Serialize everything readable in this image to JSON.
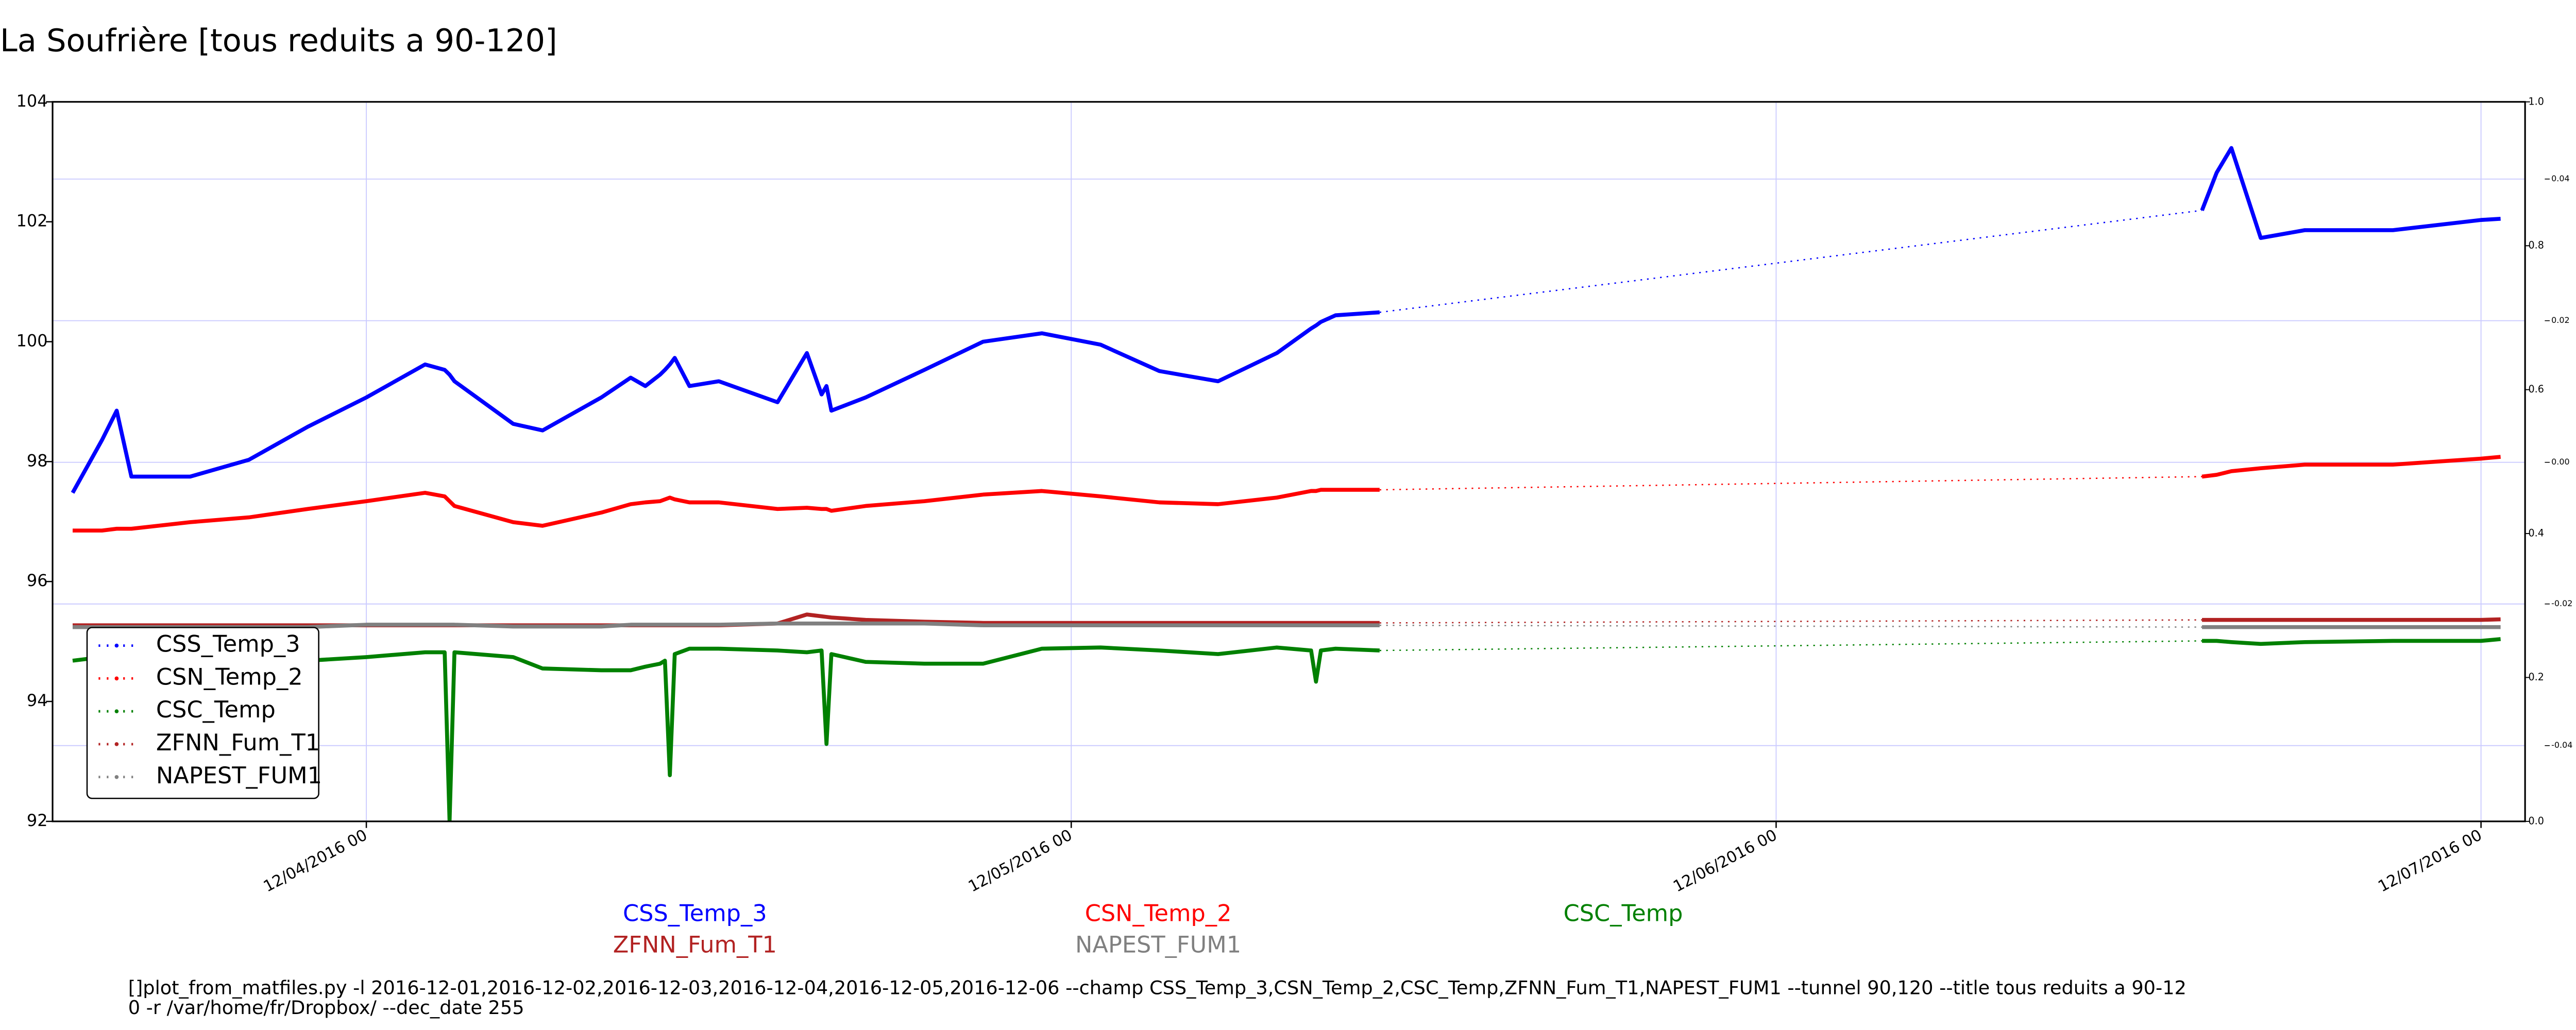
{
  "chart_data": {
    "type": "line",
    "title": "La Soufrière [tous reduits a 90-120]",
    "x": [
      "2016-12-03 14:00",
      "2016-12-03 15:00",
      "2016-12-03 15:30",
      "2016-12-03 16:00",
      "2016-12-03 18:00",
      "2016-12-03 20:00",
      "2016-12-03 22:00",
      "2016-12-04 00:00",
      "2016-12-04 02:00",
      "2016-12-04 02:40",
      "2016-12-04 02:50",
      "2016-12-04 03:00",
      "2016-12-04 05:00",
      "2016-12-04 06:00",
      "2016-12-04 08:00",
      "2016-12-04 09:00",
      "2016-12-04 09:30",
      "2016-12-04 10:00",
      "2016-12-04 10:10",
      "2016-12-04 10:20",
      "2016-12-04 10:30",
      "2016-12-04 11:00",
      "2016-12-04 12:00",
      "2016-12-04 14:00",
      "2016-12-04 15:00",
      "2016-12-04 15:30",
      "2016-12-04 15:40",
      "2016-12-04 15:50",
      "2016-12-04 17:00",
      "2016-12-04 19:00",
      "2016-12-04 21:00",
      "2016-12-04 23:00",
      "2016-12-05 01:00",
      "2016-12-05 03:00",
      "2016-12-05 05:00",
      "2016-12-05 07:00",
      "2016-12-05 08:10",
      "2016-12-05 08:20",
      "2016-12-05 08:30",
      "2016-12-05 09:00",
      "2016-12-05 10:30",
      "2016-12-06 14:30",
      "2016-12-06 15:00",
      "2016-12-06 15:30",
      "2016-12-06 16:30",
      "2016-12-06 18:00",
      "2016-12-06 21:00",
      "2016-12-07 00:00",
      "2016-12-07 00:40"
    ],
    "series": [
      {
        "name": "CSS_Temp_3",
        "color": "#0000ff",
        "values": [
          97.48,
          98.36,
          98.85,
          97.75,
          97.75,
          98.03,
          98.58,
          99.07,
          99.62,
          99.53,
          99.45,
          99.34,
          98.63,
          98.52,
          99.07,
          99.4,
          99.26,
          99.45,
          99.53,
          99.62,
          99.73,
          99.26,
          99.34,
          98.99,
          99.81,
          99.12,
          99.26,
          98.85,
          99.07,
          99.53,
          100.0,
          100.14,
          99.95,
          99.51,
          99.34,
          99.81,
          100.22,
          100.27,
          100.33,
          100.44,
          100.49,
          102.19,
          102.82,
          103.23,
          101.73,
          101.86,
          101.86,
          102.03,
          102.05
        ]
      },
      {
        "name": "CSN_Temp_2",
        "color": "#ff0000",
        "values": [
          96.85,
          96.85,
          96.88,
          96.88,
          96.99,
          97.07,
          97.21,
          97.34,
          97.48,
          97.42,
          97.34,
          97.26,
          96.99,
          96.93,
          97.15,
          97.29,
          97.32,
          97.34,
          97.37,
          97.4,
          97.37,
          97.32,
          97.32,
          97.21,
          97.23,
          97.21,
          97.21,
          97.18,
          97.26,
          97.34,
          97.45,
          97.51,
          97.42,
          97.32,
          97.29,
          97.4,
          97.51,
          97.51,
          97.53,
          97.53,
          97.53,
          97.75,
          97.78,
          97.84,
          97.89,
          97.95,
          97.95,
          98.05,
          98.08
        ]
      },
      {
        "name": "CSC_Temp",
        "color": "#008000",
        "values": [
          94.68,
          94.74,
          94.74,
          94.68,
          94.68,
          94.68,
          94.68,
          94.74,
          94.82,
          94.82,
          92.0,
          94.82,
          94.74,
          94.55,
          94.52,
          94.52,
          94.58,
          94.63,
          94.68,
          92.77,
          94.79,
          94.88,
          94.88,
          94.85,
          94.82,
          94.85,
          93.29,
          94.79,
          94.66,
          94.63,
          94.63,
          94.88,
          94.9,
          94.85,
          94.79,
          94.9,
          94.85,
          94.33,
          94.85,
          94.88,
          94.85,
          95.01,
          95.01,
          94.99,
          94.96,
          94.99,
          95.01,
          95.01,
          95.04
        ]
      },
      {
        "name": "ZFNN_Fum_T1",
        "color": "#b22222",
        "values": [
          95.27,
          95.27,
          95.27,
          95.27,
          95.27,
          95.27,
          95.27,
          95.27,
          95.27,
          95.27,
          95.27,
          95.27,
          95.27,
          95.27,
          95.27,
          95.27,
          95.27,
          95.27,
          95.27,
          95.27,
          95.27,
          95.27,
          95.27,
          95.3,
          95.45,
          95.42,
          95.41,
          95.4,
          95.36,
          95.33,
          95.31,
          95.31,
          95.31,
          95.31,
          95.31,
          95.31,
          95.31,
          95.31,
          95.31,
          95.31,
          95.31,
          95.36,
          95.36,
          95.36,
          95.36,
          95.36,
          95.36,
          95.36,
          95.37
        ]
      },
      {
        "name": "NAPEST_FUM1",
        "color": "#808080",
        "values": [
          95.24,
          95.24,
          95.24,
          95.24,
          95.24,
          95.24,
          95.24,
          95.28,
          95.28,
          95.28,
          95.28,
          95.28,
          95.25,
          95.25,
          95.25,
          95.28,
          95.28,
          95.28,
          95.28,
          95.28,
          95.28,
          95.28,
          95.28,
          95.3,
          95.3,
          95.3,
          95.3,
          95.3,
          95.3,
          95.3,
          95.27,
          95.27,
          95.27,
          95.27,
          95.27,
          95.27,
          95.27,
          95.27,
          95.27,
          95.27,
          95.27,
          95.24,
          95.24,
          95.24,
          95.24,
          95.24,
          95.24,
          95.24,
          95.24
        ]
      }
    ],
    "xlim": [
      "2016-12-03 13:19",
      "2016-12-07 01:30"
    ],
    "xticks": [
      {
        "value": "2016-12-04 00:00",
        "label": "12/04/2016 00"
      },
      {
        "value": "2016-12-05 00:00",
        "label": "12/05/2016 00"
      },
      {
        "value": "2016-12-06 00:00",
        "label": "12/06/2016 00"
      },
      {
        "value": "2016-12-07 00:00",
        "label": "12/07/2016 00"
      }
    ],
    "ylim": [
      92,
      104
    ],
    "yticks": [
      92,
      94,
      96,
      98,
      100,
      102,
      104
    ],
    "y2lim": [
      0,
      1
    ],
    "y2ticks": [
      {
        "value": 0,
        "label": "0.0"
      },
      0.2,
      0.4,
      0.6,
      0.8,
      {
        "value": 1,
        "label": "1.0"
      }
    ],
    "y3lim": [
      -0.0507,
      0.0509
    ],
    "y3ticks": [
      -0.04,
      -0.02,
      {
        "value": 0,
        "label": "0.00"
      },
      0.02,
      0.04
    ],
    "grid": true,
    "legend": "lower left",
    "footnote": [
      "[]plot_from_matfiles.py -l 2016-12-01,2016-12-02,2016-12-03,2016-12-04,2016-12-05,2016-12-06 --champ CSS_Temp_3,CSN_Temp_2,CSC_Temp,ZFNN_Fum_T1,NAPEST_FUM1 --tunnel 90,120 --title tous reduits a 90-12",
      "0 -r /var/home/fr/Dropbox/ --dec_date 255"
    ]
  }
}
